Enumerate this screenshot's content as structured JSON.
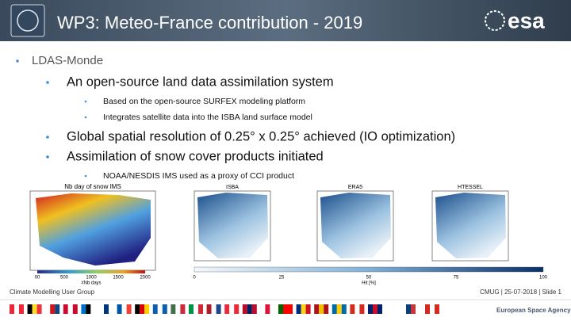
{
  "header": {
    "title": "WP3: Meteo-France contribution - 2019",
    "logo": "esa"
  },
  "bullets": [
    {
      "level": 1,
      "text": "LDAS-Monde"
    },
    {
      "level": 2,
      "text": "An open-source land data assimilation system"
    },
    {
      "level": 3,
      "text": "Based on the open-source SURFEX modeling platform"
    },
    {
      "level": 3,
      "text": "Integrates satellite data into the ISBA land surface model"
    },
    {
      "level": 2,
      "text": "Global spatial resolution of 0.25° x 0.25° achieved (IO optimization)"
    },
    {
      "level": 2,
      "text": "Assimilation of snow cover products initiated"
    },
    {
      "level": 3,
      "text": "NOAA/NESDIS IMS used as a proxy of CCI product"
    }
  ],
  "figures": {
    "left": {
      "title": "Nb day of snow IMS",
      "colorbar_ticks": [
        "00",
        "500",
        "1000",
        "1500",
        "2000"
      ],
      "colorbar_label": "#Nb days"
    },
    "right": {
      "panels": [
        "ISBA",
        "ERA5",
        "HTESSEL"
      ],
      "colorbar_ticks": [
        "0",
        "25",
        "50",
        "75",
        "100"
      ],
      "colorbar_label": "Hit [%]"
    }
  },
  "footer": {
    "group": "Climate Modelling User Group",
    "info": "CMUG | 25-07-2018 | Slide  1",
    "agency": "European Space Agency"
  }
}
